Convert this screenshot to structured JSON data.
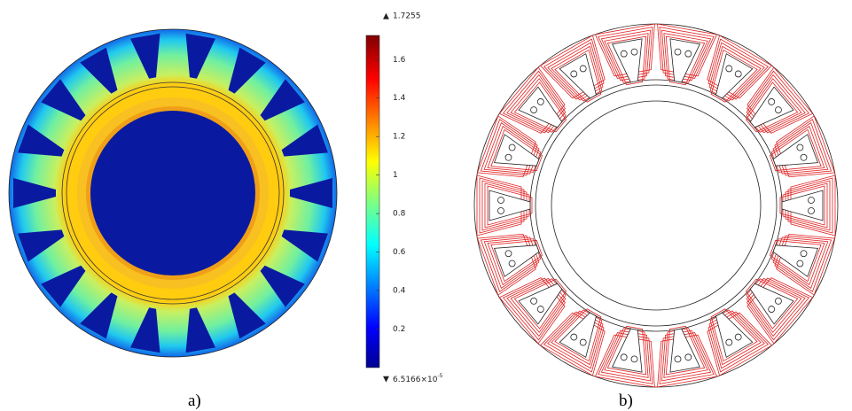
{
  "colorbar": {
    "max": 1.7255,
    "min": {
      "value": 6.5166e-05,
      "label": "6.5166×10",
      "exponent": "-5"
    },
    "ticks": [
      0.2,
      0.4,
      0.6,
      0.8,
      1,
      1.2,
      1.4,
      1.6
    ]
  },
  "panels": [
    {
      "label": "a)"
    },
    {
      "label": "b)"
    }
  ]
}
